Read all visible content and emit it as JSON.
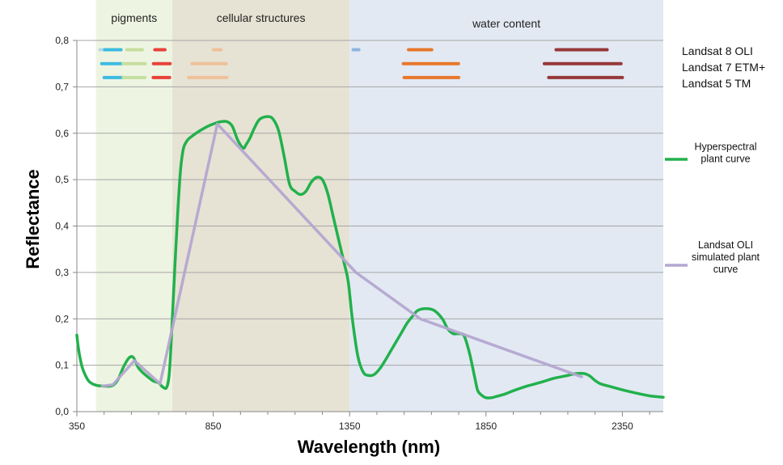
{
  "chart_data": {
    "type": "line",
    "xlabel": "Wavelength (nm)",
    "ylabel": "Reflectance",
    "xlim": [
      350,
      2500
    ],
    "ylim": [
      0,
      0.8
    ],
    "x_ticks": [
      "350",
      "850",
      "1350",
      "1850",
      "2350"
    ],
    "y_ticks": [
      "0,0",
      "0,1",
      "0,2",
      "0,3",
      "0,4",
      "0,5",
      "0,6",
      "0,7",
      "0,8"
    ],
    "grid": "horizontal",
    "regions": [
      {
        "label": "pigments",
        "start": 420,
        "end": 700,
        "color": "#eef4e2"
      },
      {
        "label": "cellular structures",
        "start": 700,
        "end": 1350,
        "color": "#e6e3d4"
      },
      {
        "label": "water content",
        "start": 1350,
        "end": 2500,
        "color": "#e2e9f3"
      }
    ],
    "sensors": [
      {
        "name": "Landsat 8 OLI",
        "y": 0.78,
        "bands": [
          {
            "start": 435,
            "end": 451,
            "color": "#b7d7e6"
          },
          {
            "start": 452,
            "end": 512,
            "color": "#3bbbe0"
          },
          {
            "start": 533,
            "end": 590,
            "color": "#c6de9e"
          },
          {
            "start": 636,
            "end": 673,
            "color": "#e8413b"
          },
          {
            "start": 851,
            "end": 879,
            "color": "#efc09a"
          },
          {
            "start": 1363,
            "end": 1384,
            "color": "#8fb5e0"
          },
          {
            "start": 1566,
            "end": 1651,
            "color": "#e8772b"
          },
          {
            "start": 2107,
            "end": 2294,
            "color": "#963838"
          }
        ]
      },
      {
        "name": "Landsat 7 ETM+",
        "y": 0.75,
        "bands": [
          {
            "start": 441,
            "end": 514,
            "color": "#3bbbe0"
          },
          {
            "start": 519,
            "end": 601,
            "color": "#c6de9e"
          },
          {
            "start": 631,
            "end": 692,
            "color": "#e8413b"
          },
          {
            "start": 772,
            "end": 898,
            "color": "#efc09a"
          },
          {
            "start": 1547,
            "end": 1749,
            "color": "#e8772b"
          },
          {
            "start": 2064,
            "end": 2345,
            "color": "#963838"
          }
        ]
      },
      {
        "name": "Landsat 5 TM",
        "y": 0.72,
        "bands": [
          {
            "start": 450,
            "end": 520,
            "color": "#3bbbe0"
          },
          {
            "start": 520,
            "end": 600,
            "color": "#c6de9e"
          },
          {
            "start": 630,
            "end": 690,
            "color": "#e8413b"
          },
          {
            "start": 760,
            "end": 900,
            "color": "#efc09a"
          },
          {
            "start": 1550,
            "end": 1750,
            "color": "#e8772b"
          },
          {
            "start": 2080,
            "end": 2350,
            "color": "#963838"
          }
        ]
      }
    ],
    "series": [
      {
        "name": "Hyperspectral plant curve",
        "color": "#22b14c",
        "x": [
          350,
          355,
          362,
          370,
          380,
          395,
          420,
          450,
          480,
          500,
          520,
          540,
          555,
          565,
          575,
          590,
          610,
          630,
          650,
          665,
          680,
          690,
          700,
          710,
          720,
          730,
          740,
          750,
          760,
          780,
          800,
          830,
          860,
          880,
          900,
          920,
          940,
          960,
          970,
          985,
          1000,
          1020,
          1050,
          1070,
          1090,
          1110,
          1130,
          1150,
          1170,
          1190,
          1210,
          1230,
          1250,
          1270,
          1290,
          1310,
          1330,
          1345,
          1360,
          1380,
          1400,
          1420,
          1440,
          1460,
          1480,
          1500,
          1520,
          1540,
          1560,
          1580,
          1600,
          1630,
          1660,
          1690,
          1710,
          1730,
          1750,
          1770,
          1790,
          1810,
          1820,
          1835,
          1850,
          1870,
          1890,
          1920,
          1950,
          2000,
          2050,
          2100,
          2150,
          2180,
          2210,
          2230,
          2250,
          2270,
          2300,
          2350,
          2400,
          2450,
          2480,
          2500
        ],
        "y": [
          0.165,
          0.14,
          0.115,
          0.095,
          0.08,
          0.065,
          0.057,
          0.055,
          0.056,
          0.068,
          0.095,
          0.115,
          0.118,
          0.108,
          0.095,
          0.085,
          0.075,
          0.066,
          0.062,
          0.053,
          0.053,
          0.09,
          0.2,
          0.32,
          0.43,
          0.52,
          0.565,
          0.58,
          0.588,
          0.597,
          0.605,
          0.615,
          0.622,
          0.625,
          0.625,
          0.615,
          0.585,
          0.568,
          0.575,
          0.59,
          0.61,
          0.63,
          0.636,
          0.63,
          0.605,
          0.55,
          0.49,
          0.475,
          0.468,
          0.475,
          0.495,
          0.505,
          0.5,
          0.47,
          0.42,
          0.37,
          0.32,
          0.28,
          0.2,
          0.12,
          0.085,
          0.078,
          0.08,
          0.092,
          0.11,
          0.13,
          0.15,
          0.17,
          0.19,
          0.205,
          0.218,
          0.222,
          0.218,
          0.2,
          0.178,
          0.168,
          0.168,
          0.163,
          0.125,
          0.07,
          0.045,
          0.035,
          0.03,
          0.03,
          0.033,
          0.038,
          0.045,
          0.055,
          0.063,
          0.072,
          0.078,
          0.082,
          0.082,
          0.077,
          0.067,
          0.06,
          0.055,
          0.047,
          0.04,
          0.034,
          0.032,
          0.031
        ]
      },
      {
        "name": "Landsat OLI simulated plant curve",
        "color": "#b4a7d0",
        "x": [
          443,
          482,
          561,
          655,
          865,
          1373,
          1609,
          2201
        ],
        "y": [
          0.055,
          0.058,
          0.11,
          0.06,
          0.62,
          0.3,
          0.2,
          0.075
        ]
      }
    ],
    "legend": [
      {
        "label": "Hyperspectral\nplant curve",
        "color": "#22b14c"
      },
      {
        "label": "Landsat OLI\nsimulated plant\ncurve",
        "color": "#b4a7d0"
      }
    ],
    "legend_position": "right"
  }
}
